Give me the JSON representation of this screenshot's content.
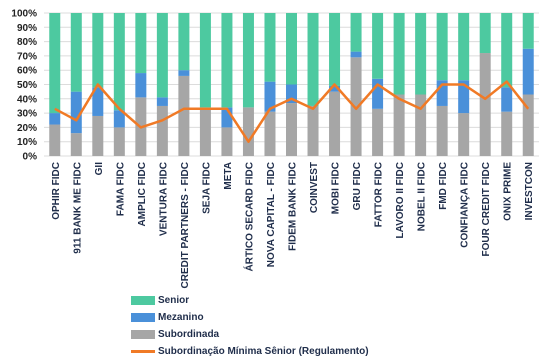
{
  "colors": {
    "senior": "#4dc9a0",
    "mezanino": "#4a90d9",
    "subordinada": "#a6a6a6",
    "subordinacao_minima": "#f07a26",
    "grid": "#dcdcdc"
  },
  "chart_data": {
    "type": "bar",
    "stacked": true,
    "categories": [
      "OPHIR FIDC",
      "911 BANK ME FIDC",
      "GII",
      "FAMA FIDC",
      "AMPLIC FIDC",
      "VENTURA FIDC",
      "CREDIT PARTNERS - FIDC",
      "SEJA FIDC",
      "META",
      "ÁRTICO SECARD FIDC",
      "NOVA CAPITAL - FIDC",
      "FIDEM BANK FIDC",
      "COINVEST",
      "MOBI FIDC",
      "GRU FIDC",
      "FATTOR FIDC",
      "LAVORO II FIDC",
      "NOBEL II FIDC",
      "FMD FIDC",
      "CONFIANÇA FIDC",
      "FOUR CREDIT FIDC",
      "ONIX PRIME",
      "INVESTCON"
    ],
    "series": [
      {
        "name": "Subordinada",
        "type": "bar",
        "values": [
          22,
          16,
          28,
          20,
          41,
          35,
          56,
          34,
          20,
          34,
          31,
          37,
          35,
          45,
          69,
          33,
          43,
          43,
          35,
          30,
          72,
          31,
          43
        ]
      },
      {
        "name": "Mezanino",
        "type": "bar",
        "values": [
          8,
          29,
          20,
          12,
          17,
          6,
          4,
          0,
          14,
          0,
          21,
          13,
          0,
          4,
          4,
          21,
          0,
          0,
          18,
          23,
          0,
          17,
          32
        ]
      },
      {
        "name": "Senior",
        "type": "bar",
        "values": [
          70,
          55,
          52,
          68,
          42,
          59,
          40,
          66,
          66,
          66,
          48,
          50,
          65,
          51,
          27,
          46,
          57,
          57,
          47,
          47,
          28,
          52,
          25
        ]
      },
      {
        "name": "Subordinação Mínima Sênior (Regulamento)",
        "type": "line",
        "values": [
          33,
          25,
          50,
          33,
          20,
          25,
          33,
          33,
          33,
          10,
          33,
          40,
          33,
          50,
          33,
          50,
          40,
          33,
          50,
          50,
          40,
          52,
          33
        ]
      }
    ],
    "yaxis": {
      "min": 0,
      "max": 100,
      "step": 10,
      "format": "percent"
    },
    "ytick_labels": [
      "0%",
      "10%",
      "20%",
      "30%",
      "40%",
      "50%",
      "60%",
      "70%",
      "80%",
      "90%",
      "100%"
    ],
    "grid": true,
    "legend_position": "bottom"
  },
  "legend": [
    {
      "label": "Senior",
      "kind": "box",
      "color_key": "senior"
    },
    {
      "label": "Mezanino",
      "kind": "box",
      "color_key": "mezanino"
    },
    {
      "label": "Subordinada",
      "kind": "box",
      "color_key": "subordinada"
    },
    {
      "label": "Subordinação Mínima Sênior (Regulamento)",
      "kind": "line",
      "color_key": "subordinacao_minima"
    }
  ]
}
